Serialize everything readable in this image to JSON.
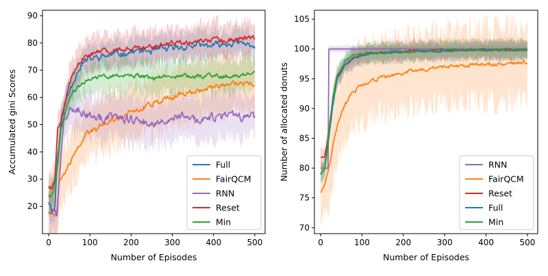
{
  "chart_data": [
    {
      "type": "line",
      "xlabel": "Number of Episodes",
      "ylabel": "Accumulated gini Scores",
      "xlim": [
        -15,
        525
      ],
      "ylim": [
        10,
        92
      ],
      "xticks": [
        0,
        100,
        200,
        300,
        400,
        500
      ],
      "yticks": [
        20,
        30,
        40,
        50,
        60,
        70,
        80,
        90
      ],
      "legend": "lower-right",
      "series": [
        {
          "name": "Full",
          "color": "#1f77b4",
          "seed": 11,
          "points": [
            [
              0,
              22
            ],
            [
              8,
              19
            ],
            [
              15,
              19
            ],
            [
              20,
              35
            ],
            [
              30,
              50
            ],
            [
              40,
              58
            ],
            [
              55,
              64
            ],
            [
              70,
              70
            ],
            [
              85,
              73
            ],
            [
              100,
              74
            ],
            [
              130,
              75
            ],
            [
              170,
              76
            ],
            [
              210,
              77
            ],
            [
              250,
              77
            ],
            [
              300,
              78
            ],
            [
              350,
              79
            ],
            [
              400,
              79
            ],
            [
              450,
              80
            ],
            [
              500,
              79
            ]
          ],
          "noise": 2.2,
          "band": 5
        },
        {
          "name": "FairQCM",
          "color": "#ff7f0e",
          "seed": 22,
          "points": [
            [
              0,
              18
            ],
            [
              10,
              17
            ],
            [
              20,
              18
            ],
            [
              25,
              30
            ],
            [
              40,
              32
            ],
            [
              55,
              37
            ],
            [
              70,
              42
            ],
            [
              90,
              46
            ],
            [
              110,
              48
            ],
            [
              130,
              50
            ],
            [
              160,
              52
            ],
            [
              200,
              55
            ],
            [
              240,
              57
            ],
            [
              280,
              59
            ],
            [
              320,
              61
            ],
            [
              360,
              63
            ],
            [
              400,
              64
            ],
            [
              450,
              65
            ],
            [
              500,
              65
            ]
          ],
          "noise": 1.8,
          "band": 10
        },
        {
          "name": "RNN",
          "color": "#9467bd",
          "seed": 33,
          "points": [
            [
              0,
              18
            ],
            [
              10,
              18
            ],
            [
              20,
              17
            ],
            [
              25,
              28
            ],
            [
              35,
              50
            ],
            [
              50,
              57
            ],
            [
              70,
              56
            ],
            [
              90,
              54
            ],
            [
              120,
              52
            ],
            [
              160,
              53
            ],
            [
              200,
              52
            ],
            [
              240,
              51
            ],
            [
              280,
              52
            ],
            [
              320,
              53
            ],
            [
              360,
              51
            ],
            [
              400,
              53
            ],
            [
              450,
              53
            ],
            [
              500,
              52
            ]
          ],
          "noise": 3.0,
          "band": 8
        },
        {
          "name": "Reset",
          "color": "#d62728",
          "seed": 44,
          "points": [
            [
              0,
              27
            ],
            [
              8,
              26
            ],
            [
              15,
              30
            ],
            [
              22,
              48
            ],
            [
              35,
              55
            ],
            [
              50,
              65
            ],
            [
              70,
              72
            ],
            [
              90,
              75
            ],
            [
              110,
              76
            ],
            [
              140,
              77
            ],
            [
              180,
              78
            ],
            [
              220,
              78
            ],
            [
              260,
              79
            ],
            [
              300,
              80
            ],
            [
              350,
              80
            ],
            [
              400,
              81
            ],
            [
              450,
              81
            ],
            [
              500,
              82
            ]
          ],
          "noise": 1.8,
          "band": 6
        },
        {
          "name": "Min",
          "color": "#2ca02c",
          "seed": 55,
          "points": [
            [
              0,
              24
            ],
            [
              10,
              25
            ],
            [
              20,
              33
            ],
            [
              30,
              48
            ],
            [
              45,
              57
            ],
            [
              60,
              62
            ],
            [
              80,
              65
            ],
            [
              100,
              67
            ],
            [
              130,
              68
            ],
            [
              160,
              68
            ],
            [
              200,
              68
            ],
            [
              250,
              67
            ],
            [
              300,
              68
            ],
            [
              350,
              68
            ],
            [
              400,
              68
            ],
            [
              450,
              68
            ],
            [
              500,
              69
            ]
          ],
          "noise": 1.5,
          "band": 6
        }
      ]
    },
    {
      "type": "line",
      "xlabel": "Number of Episodes",
      "ylabel": "Number of allocated donuts",
      "xlim": [
        -15,
        525
      ],
      "ylim": [
        69,
        106.5
      ],
      "xticks": [
        0,
        100,
        200,
        300,
        400,
        500
      ],
      "yticks": [
        70,
        75,
        80,
        85,
        90,
        95,
        100,
        105
      ],
      "legend": "lower-right",
      "series": [
        {
          "name": "RNN",
          "color": "#9467bd",
          "seed": 66,
          "points": [
            [
              0,
              80
            ],
            [
              10,
              80
            ],
            [
              18,
              80
            ],
            [
              19,
              100
            ],
            [
              500,
              100
            ]
          ],
          "noise": 0.0,
          "band": 0.5
        },
        {
          "name": "FairQCM",
          "color": "#ff7f0e",
          "seed": 77,
          "points": [
            [
              0,
              76
            ],
            [
              10,
              77
            ],
            [
              20,
              80
            ],
            [
              30,
              84
            ],
            [
              40,
              87
            ],
            [
              55,
              90
            ],
            [
              70,
              92
            ],
            [
              90,
              93.5
            ],
            [
              120,
              94.5
            ],
            [
              160,
              95.5
            ],
            [
              200,
              96
            ],
            [
              250,
              96.5
            ],
            [
              300,
              97
            ],
            [
              350,
              97.2
            ],
            [
              400,
              97.4
            ],
            [
              450,
              97.5
            ],
            [
              500,
              97.6
            ]
          ],
          "noise": 0.6,
          "band": 6
        },
        {
          "name": "Reset",
          "color": "#d62728",
          "seed": 88,
          "points": [
            [
              0,
              82
            ],
            [
              10,
              82
            ],
            [
              20,
              86
            ],
            [
              30,
              92
            ],
            [
              40,
              95
            ],
            [
              60,
              97.5
            ],
            [
              80,
              98.5
            ],
            [
              120,
              99.3
            ],
            [
              200,
              99.6
            ],
            [
              300,
              99.8
            ],
            [
              400,
              99.9
            ],
            [
              500,
              99.9
            ]
          ],
          "noise": 0.3,
          "band": 1.5
        },
        {
          "name": "Full",
          "color": "#1f77b4",
          "seed": 99,
          "points": [
            [
              0,
              79
            ],
            [
              10,
              80
            ],
            [
              20,
              85
            ],
            [
              30,
              91
            ],
            [
              40,
              95
            ],
            [
              60,
              97.5
            ],
            [
              80,
              98.5
            ],
            [
              120,
              99.2
            ],
            [
              200,
              99.5
            ],
            [
              300,
              99.7
            ],
            [
              400,
              99.8
            ],
            [
              500,
              99.8
            ]
          ],
          "noise": 0.3,
          "band": 1.5
        },
        {
          "name": "Min",
          "color": "#2ca02c",
          "seed": 111,
          "points": [
            [
              0,
              79
            ],
            [
              10,
              80
            ],
            [
              20,
              86
            ],
            [
              30,
              92
            ],
            [
              40,
              95.5
            ],
            [
              60,
              98
            ],
            [
              80,
              99
            ],
            [
              120,
              99.4
            ],
            [
              200,
              99.6
            ],
            [
              300,
              99.8
            ],
            [
              400,
              99.8
            ],
            [
              500,
              99.9
            ]
          ],
          "noise": 0.3,
          "band": 1.5
        }
      ]
    }
  ]
}
